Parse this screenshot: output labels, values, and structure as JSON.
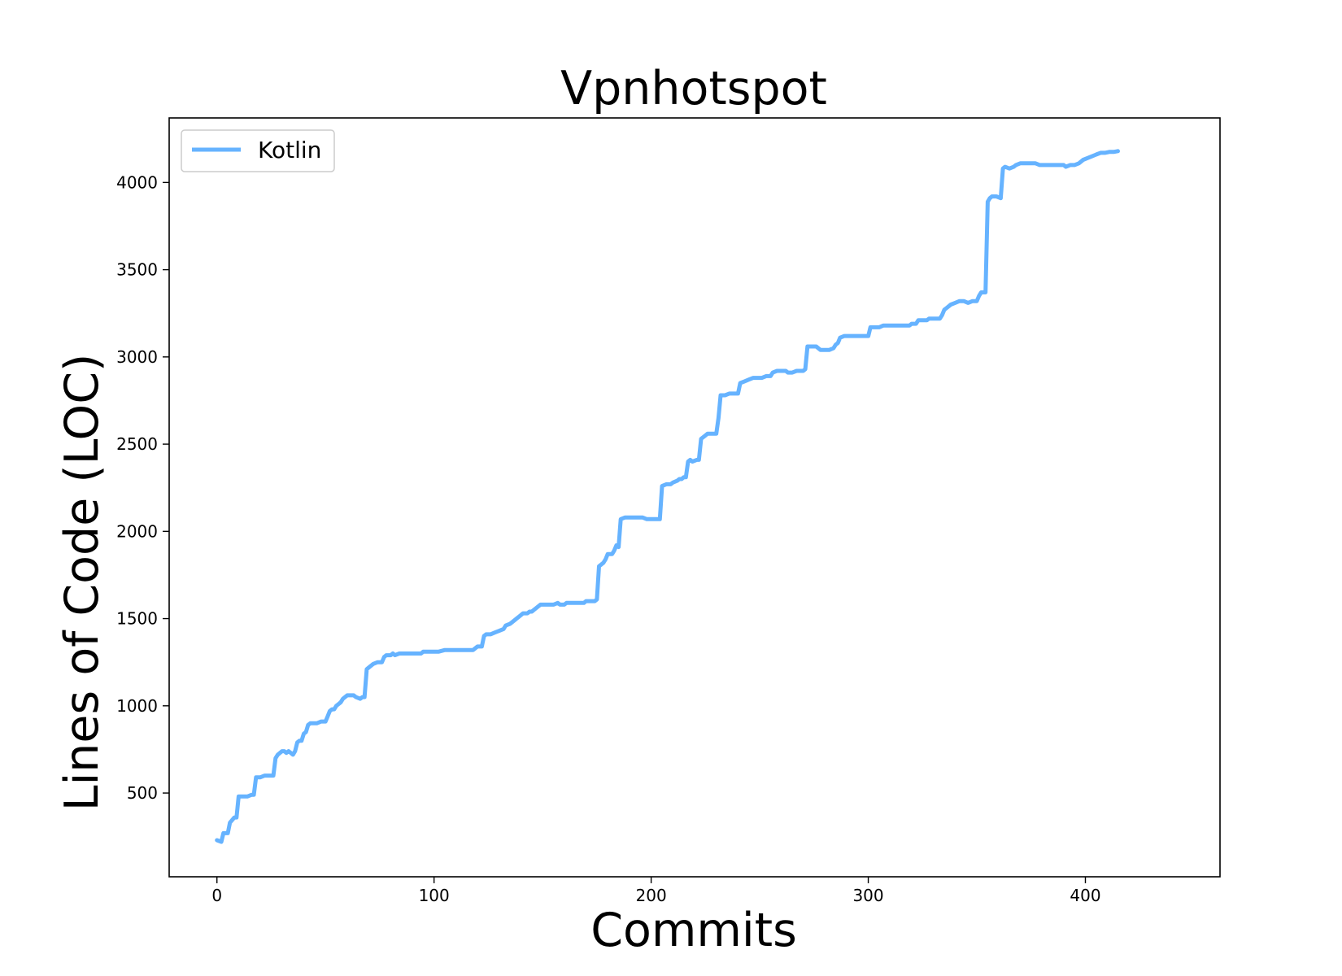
{
  "chart_data": {
    "type": "line",
    "title": "Vpnhotspot",
    "xlabel": "Commits",
    "ylabel": "Lines of Code (LOC)",
    "xlim": [
      -22,
      462
    ],
    "ylim": [
      20,
      4370
    ],
    "xticks": [
      0,
      100,
      200,
      300,
      400
    ],
    "yticks": [
      500,
      1000,
      1500,
      2000,
      2500,
      3000,
      3500,
      4000
    ],
    "grid": false,
    "legend_position": "upper-left",
    "series": [
      {
        "name": "Kotlin",
        "color": "#66b3ff",
        "points": [
          [
            0,
            230
          ],
          [
            2,
            220
          ],
          [
            3,
            270
          ],
          [
            5,
            270
          ],
          [
            6,
            330
          ],
          [
            8,
            360
          ],
          [
            9,
            360
          ],
          [
            10,
            480
          ],
          [
            12,
            480
          ],
          [
            14,
            480
          ],
          [
            16,
            490
          ],
          [
            17,
            490
          ],
          [
            18,
            590
          ],
          [
            20,
            590
          ],
          [
            22,
            600
          ],
          [
            24,
            600
          ],
          [
            26,
            600
          ],
          [
            27,
            700
          ],
          [
            28,
            720
          ],
          [
            30,
            740
          ],
          [
            31,
            740
          ],
          [
            32,
            730
          ],
          [
            33,
            740
          ],
          [
            34,
            730
          ],
          [
            35,
            720
          ],
          [
            36,
            740
          ],
          [
            37,
            790
          ],
          [
            38,
            800
          ],
          [
            39,
            800
          ],
          [
            40,
            840
          ],
          [
            41,
            850
          ],
          [
            42,
            890
          ],
          [
            43,
            900
          ],
          [
            44,
            900
          ],
          [
            46,
            900
          ],
          [
            48,
            910
          ],
          [
            50,
            910
          ],
          [
            51,
            940
          ],
          [
            52,
            970
          ],
          [
            53,
            980
          ],
          [
            54,
            980
          ],
          [
            55,
            1000
          ],
          [
            56,
            1010
          ],
          [
            57,
            1020
          ],
          [
            58,
            1040
          ],
          [
            60,
            1060
          ],
          [
            62,
            1060
          ],
          [
            63,
            1060
          ],
          [
            64,
            1050
          ],
          [
            66,
            1040
          ],
          [
            67,
            1050
          ],
          [
            68,
            1050
          ],
          [
            69,
            1210
          ],
          [
            70,
            1220
          ],
          [
            72,
            1240
          ],
          [
            74,
            1250
          ],
          [
            76,
            1250
          ],
          [
            77,
            1280
          ],
          [
            78,
            1290
          ],
          [
            80,
            1290
          ],
          [
            81,
            1300
          ],
          [
            82,
            1290
          ],
          [
            84,
            1300
          ],
          [
            86,
            1300
          ],
          [
            88,
            1300
          ],
          [
            90,
            1300
          ],
          [
            92,
            1300
          ],
          [
            94,
            1300
          ],
          [
            95,
            1310
          ],
          [
            97,
            1310
          ],
          [
            100,
            1310
          ],
          [
            102,
            1310
          ],
          [
            105,
            1320
          ],
          [
            108,
            1320
          ],
          [
            110,
            1320
          ],
          [
            112,
            1320
          ],
          [
            115,
            1320
          ],
          [
            118,
            1320
          ],
          [
            119,
            1330
          ],
          [
            120,
            1340
          ],
          [
            122,
            1340
          ],
          [
            123,
            1400
          ],
          [
            124,
            1410
          ],
          [
            126,
            1410
          ],
          [
            128,
            1420
          ],
          [
            130,
            1430
          ],
          [
            132,
            1440
          ],
          [
            133,
            1460
          ],
          [
            135,
            1470
          ],
          [
            136,
            1480
          ],
          [
            138,
            1500
          ],
          [
            139,
            1510
          ],
          [
            140,
            1520
          ],
          [
            141,
            1530
          ],
          [
            143,
            1530
          ],
          [
            144,
            1540
          ],
          [
            145,
            1540
          ],
          [
            146,
            1550
          ],
          [
            148,
            1570
          ],
          [
            149,
            1580
          ],
          [
            151,
            1580
          ],
          [
            153,
            1580
          ],
          [
            155,
            1580
          ],
          [
            157,
            1590
          ],
          [
            158,
            1580
          ],
          [
            160,
            1580
          ],
          [
            161,
            1590
          ],
          [
            163,
            1590
          ],
          [
            165,
            1590
          ],
          [
            167,
            1590
          ],
          [
            169,
            1590
          ],
          [
            170,
            1600
          ],
          [
            172,
            1600
          ],
          [
            174,
            1600
          ],
          [
            175,
            1610
          ],
          [
            176,
            1800
          ],
          [
            177,
            1810
          ],
          [
            178,
            1820
          ],
          [
            179,
            1840
          ],
          [
            180,
            1870
          ],
          [
            182,
            1870
          ],
          [
            183,
            1890
          ],
          [
            184,
            1920
          ],
          [
            185,
            1910
          ],
          [
            186,
            2070
          ],
          [
            188,
            2080
          ],
          [
            190,
            2080
          ],
          [
            192,
            2080
          ],
          [
            194,
            2080
          ],
          [
            196,
            2080
          ],
          [
            198,
            2070
          ],
          [
            200,
            2070
          ],
          [
            202,
            2070
          ],
          [
            204,
            2070
          ],
          [
            205,
            2260
          ],
          [
            207,
            2270
          ],
          [
            209,
            2270
          ],
          [
            210,
            2280
          ],
          [
            212,
            2290
          ],
          [
            213,
            2300
          ],
          [
            214,
            2300
          ],
          [
            215,
            2310
          ],
          [
            216,
            2310
          ],
          [
            217,
            2400
          ],
          [
            218,
            2410
          ],
          [
            219,
            2400
          ],
          [
            221,
            2410
          ],
          [
            222,
            2410
          ],
          [
            223,
            2530
          ],
          [
            225,
            2550
          ],
          [
            226,
            2560
          ],
          [
            228,
            2560
          ],
          [
            230,
            2560
          ],
          [
            231,
            2650
          ],
          [
            232,
            2780
          ],
          [
            234,
            2780
          ],
          [
            236,
            2790
          ],
          [
            238,
            2790
          ],
          [
            240,
            2790
          ],
          [
            241,
            2850
          ],
          [
            243,
            2860
          ],
          [
            245,
            2870
          ],
          [
            247,
            2880
          ],
          [
            249,
            2880
          ],
          [
            251,
            2880
          ],
          [
            253,
            2890
          ],
          [
            255,
            2890
          ],
          [
            256,
            2910
          ],
          [
            258,
            2920
          ],
          [
            260,
            2920
          ],
          [
            262,
            2920
          ],
          [
            263,
            2910
          ],
          [
            265,
            2910
          ],
          [
            267,
            2920
          ],
          [
            269,
            2920
          ],
          [
            270,
            2920
          ],
          [
            271,
            2930
          ],
          [
            272,
            3060
          ],
          [
            274,
            3060
          ],
          [
            276,
            3060
          ],
          [
            278,
            3040
          ],
          [
            280,
            3040
          ],
          [
            282,
            3040
          ],
          [
            284,
            3050
          ],
          [
            285,
            3070
          ],
          [
            286,
            3080
          ],
          [
            287,
            3110
          ],
          [
            289,
            3120
          ],
          [
            291,
            3120
          ],
          [
            293,
            3120
          ],
          [
            295,
            3120
          ],
          [
            298,
            3120
          ],
          [
            300,
            3120
          ],
          [
            301,
            3170
          ],
          [
            303,
            3170
          ],
          [
            305,
            3170
          ],
          [
            307,
            3180
          ],
          [
            309,
            3180
          ],
          [
            311,
            3180
          ],
          [
            313,
            3180
          ],
          [
            316,
            3180
          ],
          [
            319,
            3180
          ],
          [
            320,
            3190
          ],
          [
            322,
            3190
          ],
          [
            323,
            3210
          ],
          [
            325,
            3210
          ],
          [
            327,
            3210
          ],
          [
            328,
            3220
          ],
          [
            330,
            3220
          ],
          [
            333,
            3220
          ],
          [
            334,
            3240
          ],
          [
            335,
            3270
          ],
          [
            336,
            3280
          ],
          [
            338,
            3300
          ],
          [
            340,
            3310
          ],
          [
            342,
            3320
          ],
          [
            344,
            3320
          ],
          [
            346,
            3310
          ],
          [
            348,
            3320
          ],
          [
            350,
            3320
          ],
          [
            351,
            3350
          ],
          [
            352,
            3370
          ],
          [
            354,
            3370
          ],
          [
            355,
            3890
          ],
          [
            356,
            3910
          ],
          [
            357,
            3920
          ],
          [
            359,
            3920
          ],
          [
            361,
            3910
          ],
          [
            362,
            4080
          ],
          [
            363,
            4090
          ],
          [
            365,
            4080
          ],
          [
            367,
            4090
          ],
          [
            368,
            4100
          ],
          [
            370,
            4110
          ],
          [
            372,
            4110
          ],
          [
            375,
            4110
          ],
          [
            377,
            4110
          ],
          [
            379,
            4100
          ],
          [
            382,
            4100
          ],
          [
            385,
            4100
          ],
          [
            388,
            4100
          ],
          [
            390,
            4100
          ],
          [
            391,
            4090
          ],
          [
            393,
            4100
          ],
          [
            395,
            4100
          ],
          [
            397,
            4110
          ],
          [
            399,
            4130
          ],
          [
            401,
            4140
          ],
          [
            403,
            4150
          ],
          [
            405,
            4160
          ],
          [
            407,
            4170
          ],
          [
            409,
            4170
          ],
          [
            411,
            4175
          ],
          [
            413,
            4175
          ],
          [
            415,
            4180
          ]
        ]
      }
    ]
  }
}
